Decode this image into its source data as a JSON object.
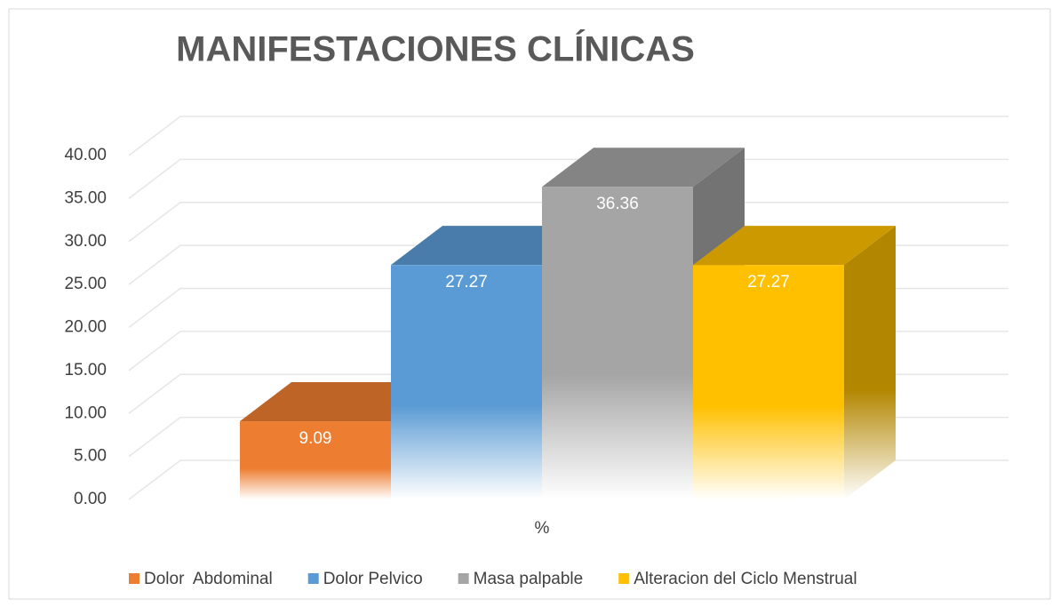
{
  "chart_data": {
    "type": "bar3d",
    "title": "MANIFESTACIONES CLÍNICAS",
    "categories": [
      "%"
    ],
    "series": [
      {
        "name": "Dolor  Abdominal",
        "color": "#ed7d31",
        "values": [
          9.09
        ]
      },
      {
        "name": "Dolor Pelvico",
        "color": "#5b9bd5",
        "values": [
          27.27
        ]
      },
      {
        "name": "Masa palpable",
        "color": "#a5a5a5",
        "values": [
          36.36
        ]
      },
      {
        "name": "Alteracion del Ciclo Menstrual",
        "color": "#ffc000",
        "values": [
          27.27
        ]
      }
    ],
    "ylim": [
      0,
      40
    ],
    "yticks": [
      {
        "value": 0,
        "label": "0.00"
      },
      {
        "value": 5,
        "label": "5.00"
      },
      {
        "value": 10,
        "label": "10.00"
      },
      {
        "value": 15,
        "label": "15.00"
      },
      {
        "value": 20,
        "label": "20.00"
      },
      {
        "value": 25,
        "label": "25.00"
      },
      {
        "value": 30,
        "label": "30.00"
      },
      {
        "value": 35,
        "label": "35.00"
      },
      {
        "value": 40,
        "label": "40.00"
      }
    ],
    "grid": true,
    "legend": "bottom"
  }
}
